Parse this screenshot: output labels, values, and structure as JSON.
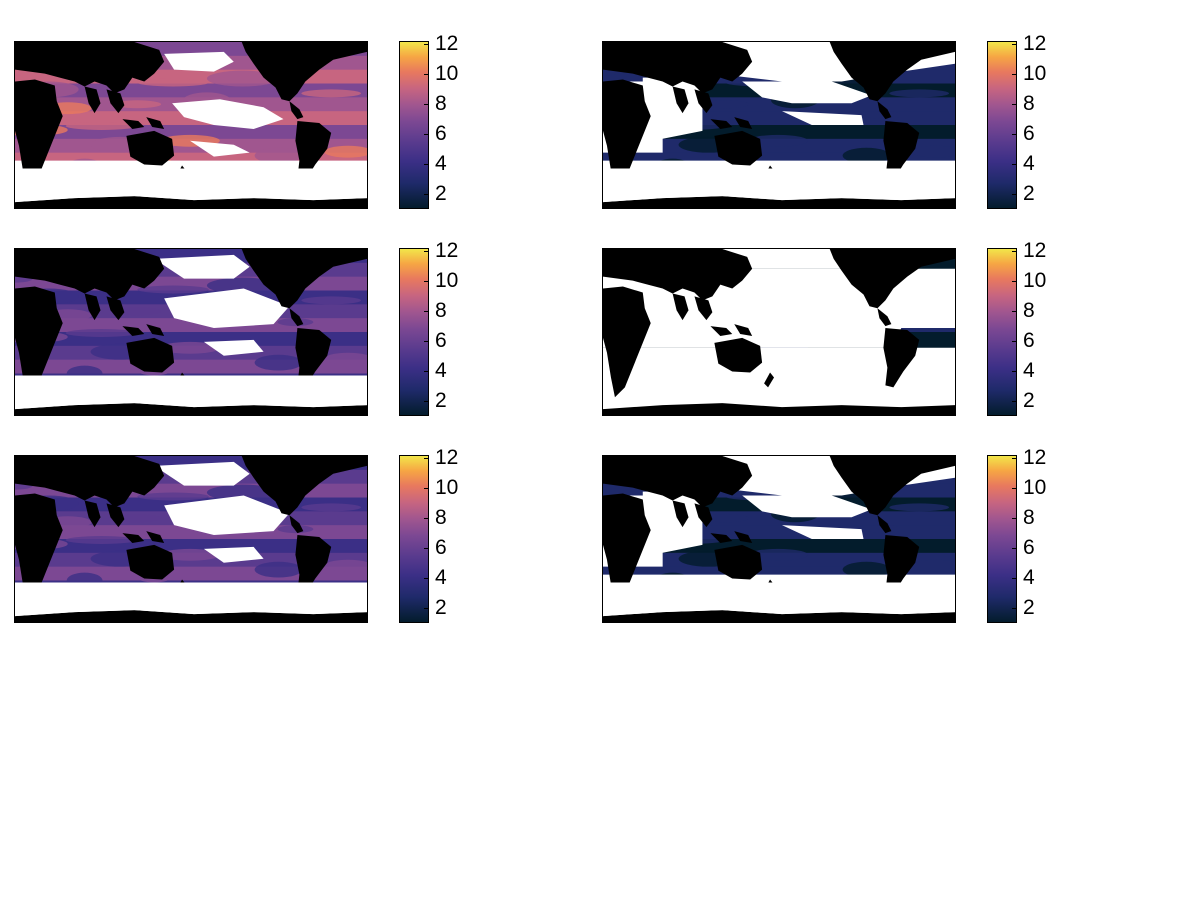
{
  "figure": {
    "colormap": [
      "#031c2c",
      "#1f2a6a",
      "#3b2f86",
      "#5a3b8e",
      "#7c4893",
      "#a0568f",
      "#c76580",
      "#e8795e",
      "#f6a544",
      "#f2e64a"
    ],
    "land_color": "#000000",
    "masked_color": "#ffffff",
    "colorbar_ticks": [
      "12",
      "10",
      "8",
      "6",
      "4",
      "2"
    ],
    "colorbar_range": [
      1,
      12.2
    ],
    "panels": [
      {
        "id": "r1c1",
        "level": "high"
      },
      {
        "id": "r1c2",
        "level": "low"
      },
      {
        "id": "r2c1",
        "level": "mid"
      },
      {
        "id": "r2c2",
        "level": "verylow"
      },
      {
        "id": "r3c1",
        "level": "mid"
      },
      {
        "id": "r3c2",
        "level": "low"
      }
    ]
  }
}
